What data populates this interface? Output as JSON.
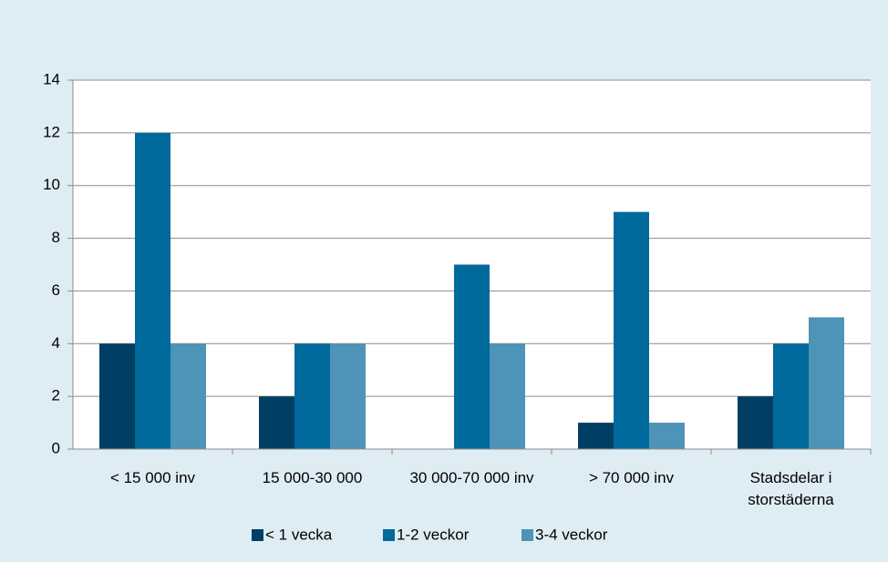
{
  "chart_data": {
    "type": "bar",
    "categories": [
      "< 15 000 inv",
      "15 000-30 000",
      "30 000-70 000 inv",
      "> 70 000 inv",
      "Stadsdelar i storstäderna"
    ],
    "series": [
      {
        "name": "< 1 vecka",
        "color": "#003f63",
        "values": [
          4,
          2,
          0,
          1,
          2
        ]
      },
      {
        "name": "1-2 veckor",
        "color": "#006a9c",
        "values": [
          12,
          4,
          7,
          9,
          4
        ]
      },
      {
        "name": "3-4 veckor",
        "color": "#4e93b8",
        "values": [
          4,
          4,
          4,
          1,
          5
        ]
      }
    ],
    "ylim": [
      0,
      14
    ],
    "yticks": [
      0,
      2,
      4,
      6,
      8,
      10,
      12,
      14
    ],
    "grid": true,
    "legend": "bottom"
  }
}
